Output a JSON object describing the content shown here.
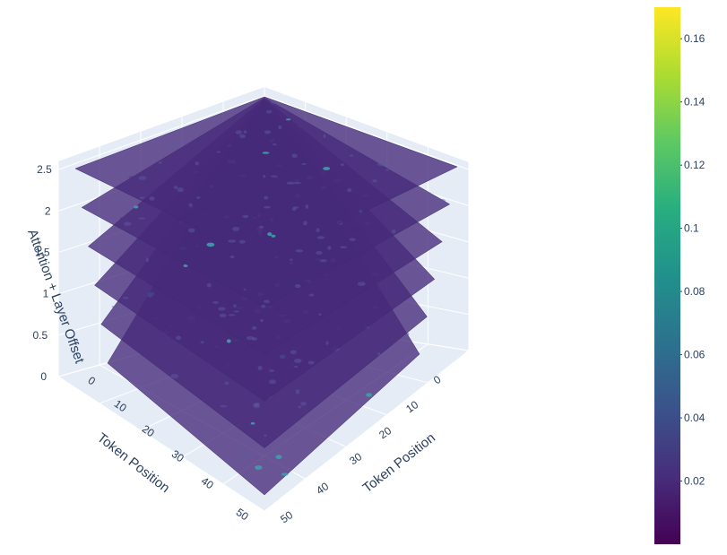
{
  "chart_data": {
    "type": "surface-3d-stacked",
    "title": "",
    "x_axis": {
      "label": "Token Position",
      "ticks": [
        0,
        10,
        20,
        30,
        40,
        50
      ],
      "range": [
        0,
        50
      ]
    },
    "y_axis": {
      "label": "Token Position",
      "ticks": [
        0,
        10,
        20,
        30,
        40,
        50
      ],
      "range": [
        0,
        50
      ]
    },
    "z_axis": {
      "label": "Attention + Layer Offset",
      "ticks": [
        "0",
        "0.5",
        "1",
        "1.5",
        "2",
        "2.5"
      ],
      "range": [
        0,
        2.6
      ]
    },
    "layer_offsets": [
      0,
      0.5,
      1.0,
      1.5,
      2.0,
      2.5
    ],
    "colorbar": {
      "colorscale": "Viridis",
      "range": [
        0,
        0.17
      ],
      "ticks": [
        "0.02",
        "0.04",
        "0.06",
        "0.08",
        "0.1",
        "0.12",
        "0.14",
        "0.16"
      ]
    },
    "grid": true
  }
}
